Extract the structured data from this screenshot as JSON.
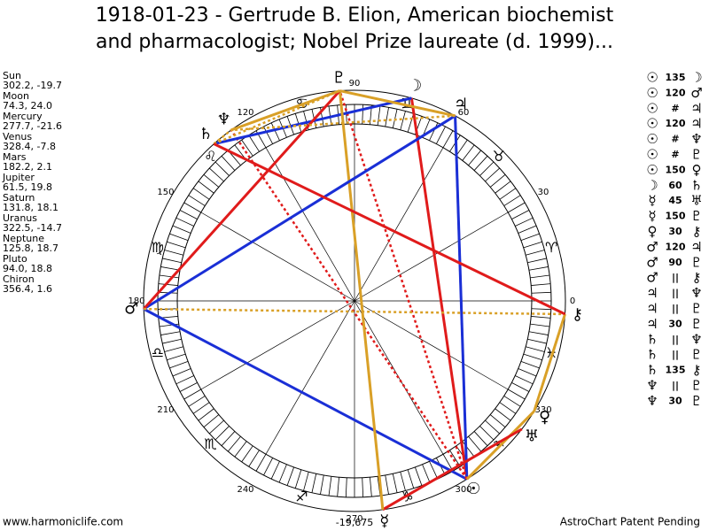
{
  "header": {
    "title": [
      "1918-01-23 - Gertrude B. Elion, American biochemist",
      "and pharmacologist; Nobel Prize laureate (d. 1999)..."
    ]
  },
  "planets": [
    {
      "name": "Sun",
      "glyph": "☉",
      "coords": "302.2, -19.7"
    },
    {
      "name": "Moon",
      "glyph": "☽",
      "coords": "74.3, 24.0"
    },
    {
      "name": "Mercury",
      "glyph": "☿",
      "coords": "277.7, -21.6"
    },
    {
      "name": "Venus",
      "glyph": "♀",
      "coords": "328.4, -7.8"
    },
    {
      "name": "Mars",
      "glyph": "♂",
      "coords": "182.2, 2.1"
    },
    {
      "name": "Jupiter",
      "glyph": "♃",
      "coords": "61.5, 19.8"
    },
    {
      "name": "Saturn",
      "glyph": "♄",
      "coords": "131.8, 18.1"
    },
    {
      "name": "Uranus",
      "glyph": "♅",
      "coords": "322.5, -14.7"
    },
    {
      "name": "Neptune",
      "glyph": "♆",
      "coords": "125.8, 18.7"
    },
    {
      "name": "Pluto",
      "glyph": "♇",
      "coords": "94.0, 18.8"
    },
    {
      "name": "Chiron",
      "glyph": "⚷",
      "coords": "356.4, 1.6"
    }
  ],
  "aspects": [
    {
      "from": "☉",
      "aspect": "135",
      "to": "☽"
    },
    {
      "from": "☉",
      "aspect": "120",
      "to": "♂"
    },
    {
      "from": "☉",
      "aspect": "#",
      "to": "♃"
    },
    {
      "from": "☉",
      "aspect": "120",
      "to": "♃"
    },
    {
      "from": "☉",
      "aspect": "#",
      "to": "♆"
    },
    {
      "from": "☉",
      "aspect": "#",
      "to": "♇"
    },
    {
      "from": "☉",
      "aspect": "150",
      "to": "♀"
    },
    {
      "from": "☽",
      "aspect": "60",
      "to": "♄"
    },
    {
      "from": "☿",
      "aspect": "45",
      "to": "♅"
    },
    {
      "from": "☿",
      "aspect": "150",
      "to": "♇"
    },
    {
      "from": "♀",
      "aspect": "30",
      "to": "⚷"
    },
    {
      "from": "♂",
      "aspect": "120",
      "to": "♃"
    },
    {
      "from": "♂",
      "aspect": "90",
      "to": "♇"
    },
    {
      "from": "♂",
      "aspect": "||",
      "to": "⚷"
    },
    {
      "from": "♃",
      "aspect": "||",
      "to": "♆"
    },
    {
      "from": "♃",
      "aspect": "||",
      "to": "♇"
    },
    {
      "from": "♃",
      "aspect": "30",
      "to": "♇"
    },
    {
      "from": "♄",
      "aspect": "||",
      "to": "♆"
    },
    {
      "from": "♄",
      "aspect": "||",
      "to": "♇"
    },
    {
      "from": "♄",
      "aspect": "135",
      "to": "⚷"
    },
    {
      "from": "♆",
      "aspect": "||",
      "to": "♇"
    },
    {
      "from": "♆",
      "aspect": "30",
      "to": "♇"
    }
  ],
  "wheel": {
    "degrees": [
      "0",
      "30",
      "60",
      "90",
      "120",
      "150",
      "180",
      "210",
      "240",
      "270",
      "300",
      "330"
    ],
    "bottom_label": "-19,675",
    "signs": [
      "♈",
      "♉",
      "♊",
      "♋",
      "♌",
      "♍",
      "♎",
      "♏",
      "♐",
      "♑",
      "♒",
      "♓"
    ]
  },
  "footer": {
    "left": "www.harmoniclife.com",
    "right": "AstroChart Patent Pending"
  }
}
